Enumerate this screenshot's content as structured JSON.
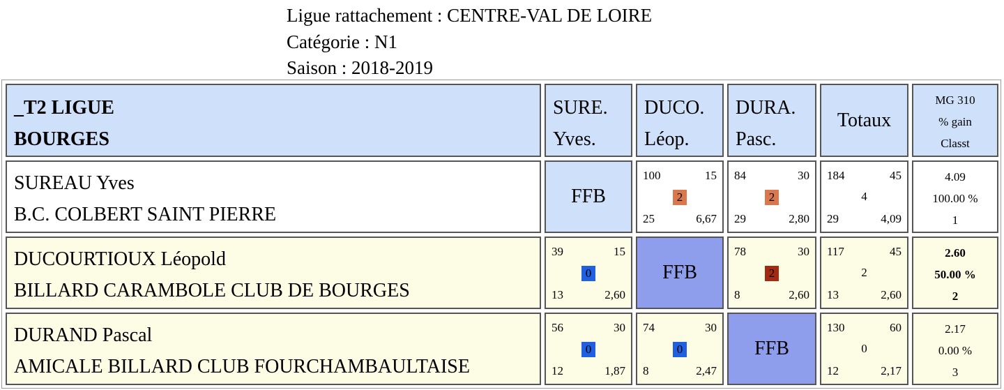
{
  "header": {
    "ligue": "Ligue rattachement : CENTRE-VAL DE LOIRE",
    "categorie": "Catégorie : N1",
    "saison": "Saison : 2018-2019"
  },
  "table": {
    "team_line1": "_T2 LIGUE",
    "team_line2": "BOURGES",
    "columns": [
      {
        "line1": "SURE.",
        "line2": "Yves."
      },
      {
        "line1": "DUCO.",
        "line2": "Léop."
      },
      {
        "line1": "DURA.",
        "line2": "Pasc."
      }
    ],
    "totals_label": "Totaux",
    "mg_label": "MG 310",
    "gain_label": "% gain",
    "classt_label": "Classt",
    "ffb_label": "FFB",
    "rows": [
      {
        "name": "SUREAU Yves",
        "club": "B.C. COLBERT SAINT PIERRE",
        "results": [
          null,
          {
            "tl": "100",
            "tr": "15",
            "mid": "2",
            "color": "#d9774f",
            "bl": "25",
            "br": "6,67"
          },
          {
            "tl": "84",
            "tr": "30",
            "mid": "2",
            "color": "#d9774f",
            "bl": "29",
            "br": "2,80"
          }
        ],
        "totals": {
          "tl": "184",
          "tr": "45",
          "mid": "4",
          "bl": "29",
          "br": "4,09"
        },
        "mg": {
          "avg": "4.09",
          "gain": "100.00 %",
          "rank": "1"
        }
      },
      {
        "name": "DUCOURTIOUX Léopold",
        "club": "BILLARD CARAMBOLE CLUB DE BOURGES",
        "results": [
          {
            "tl": "39",
            "tr": "15",
            "mid": "0",
            "color": "#1f5fe0",
            "bl": "13",
            "br": "2,60"
          },
          null,
          {
            "tl": "78",
            "tr": "30",
            "mid": "2",
            "color": "#a32a12",
            "bl": "8",
            "br": "2,60"
          }
        ],
        "totals": {
          "tl": "117",
          "tr": "45",
          "mid": "2",
          "bl": "13",
          "br": "2,60"
        },
        "mg": {
          "avg": "2.60",
          "gain": "50.00 %",
          "rank": "2"
        }
      },
      {
        "name": "DURAND Pascal",
        "club": "AMICALE BILLARD CLUB FOURCHAMBAULTAISE",
        "results": [
          {
            "tl": "56",
            "tr": "30",
            "mid": "0",
            "color": "#1f5fe0",
            "bl": "12",
            "br": "1,87"
          },
          {
            "tl": "74",
            "tr": "30",
            "mid": "0",
            "color": "#1f5fe0",
            "bl": "8",
            "br": "2,47"
          },
          null
        ],
        "totals": {
          "tl": "130",
          "tr": "60",
          "mid": "0",
          "bl": "12",
          "br": "2,17"
        },
        "mg": {
          "avg": "2.17",
          "gain": "0.00 %",
          "rank": "3"
        }
      }
    ]
  }
}
